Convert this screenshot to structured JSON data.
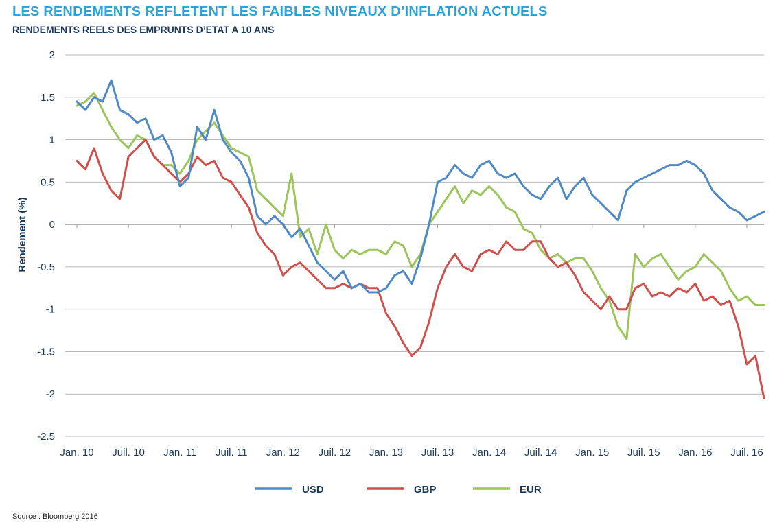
{
  "header": {
    "title": "LES RENDEMENTS REFLETENT LES FAIBLES NIVEAUX D’INFLATION ACTUELS",
    "subtitle": "RENDEMENTS REELS DES EMPRUNTS D’ETAT A 10 ANS"
  },
  "footer": {
    "source": "Source : Bloomberg 2016"
  },
  "chart_data": {
    "type": "line",
    "title": "LES RENDEMENTS REFLETENT LES FAIBLES NIVEAUX D’INFLATION ACTUELS",
    "subtitle": "RENDEMENTS REELS DES EMPRUNTS D’ETAT A 10 ANS",
    "xlabel": "",
    "ylabel": "Rendement (%)",
    "ylim": [
      -2.5,
      2
    ],
    "yticks": [
      2,
      1.5,
      1,
      0.5,
      0,
      -0.5,
      -1,
      -1.5,
      -2,
      -2.5
    ],
    "ytick_labels": [
      "2",
      "1.5",
      "1",
      "0.5",
      "0",
      "-0.5",
      "-1",
      "-1.5",
      "-2",
      "-2.5"
    ],
    "x_range": [
      "2010-01",
      "2016-09"
    ],
    "xticks": [
      "2010-01",
      "2010-07",
      "2011-01",
      "2011-07",
      "2012-01",
      "2012-07",
      "2013-01",
      "2013-07",
      "2014-01",
      "2014-07",
      "2015-01",
      "2015-07",
      "2016-01",
      "2016-07"
    ],
    "xtick_labels": [
      "Jan. 10",
      "Juil. 10",
      "Jan. 11",
      "Juil. 11",
      "Jan. 12",
      "Juil. 12",
      "Jan. 13",
      "Juil. 13",
      "Jan. 14",
      "Juil. 14",
      "Jan. 15",
      "Juil. 15",
      "Jan. 16",
      "Juil. 16"
    ],
    "grid": true,
    "legend": "bottom",
    "series": [
      {
        "name": "USD",
        "color": "#4f8ac6",
        "points": [
          [
            "2010-01",
            1.45
          ],
          [
            "2010-02",
            1.35
          ],
          [
            "2010-03",
            1.5
          ],
          [
            "2010-04",
            1.45
          ],
          [
            "2010-05",
            1.7
          ],
          [
            "2010-06",
            1.35
          ],
          [
            "2010-07",
            1.3
          ],
          [
            "2010-08",
            1.2
          ],
          [
            "2010-09",
            1.25
          ],
          [
            "2010-10",
            1.0
          ],
          [
            "2010-11",
            1.05
          ],
          [
            "2010-12",
            0.85
          ],
          [
            "2011-01",
            0.45
          ],
          [
            "2011-02",
            0.55
          ],
          [
            "2011-03",
            1.15
          ],
          [
            "2011-04",
            1.0
          ],
          [
            "2011-05",
            1.35
          ],
          [
            "2011-06",
            1.0
          ],
          [
            "2011-07",
            0.85
          ],
          [
            "2011-08",
            0.75
          ],
          [
            "2011-09",
            0.55
          ],
          [
            "2011-10",
            0.1
          ],
          [
            "2011-11",
            0.0
          ],
          [
            "2011-12",
            0.1
          ],
          [
            "2012-01",
            0.0
          ],
          [
            "2012-02",
            -0.15
          ],
          [
            "2012-03",
            -0.05
          ],
          [
            "2012-04",
            -0.25
          ],
          [
            "2012-05",
            -0.45
          ],
          [
            "2012-06",
            -0.55
          ],
          [
            "2012-07",
            -0.65
          ],
          [
            "2012-08",
            -0.55
          ],
          [
            "2012-09",
            -0.75
          ],
          [
            "2012-10",
            -0.7
          ],
          [
            "2012-11",
            -0.8
          ],
          [
            "2012-12",
            -0.8
          ],
          [
            "2013-01",
            -0.75
          ],
          [
            "2013-02",
            -0.6
          ],
          [
            "2013-03",
            -0.55
          ],
          [
            "2013-04",
            -0.7
          ],
          [
            "2013-05",
            -0.4
          ],
          [
            "2013-06",
            0.0
          ],
          [
            "2013-07",
            0.5
          ],
          [
            "2013-08",
            0.55
          ],
          [
            "2013-09",
            0.7
          ],
          [
            "2013-10",
            0.6
          ],
          [
            "2013-11",
            0.55
          ],
          [
            "2013-12",
            0.7
          ],
          [
            "2014-01",
            0.75
          ],
          [
            "2014-02",
            0.6
          ],
          [
            "2014-03",
            0.55
          ],
          [
            "2014-04",
            0.6
          ],
          [
            "2014-05",
            0.45
          ],
          [
            "2014-06",
            0.35
          ],
          [
            "2014-07",
            0.3
          ],
          [
            "2014-08",
            0.45
          ],
          [
            "2014-09",
            0.55
          ],
          [
            "2014-10",
            0.3
          ],
          [
            "2014-11",
            0.45
          ],
          [
            "2014-12",
            0.55
          ],
          [
            "2015-01",
            0.35
          ],
          [
            "2015-02",
            0.25
          ],
          [
            "2015-03",
            0.15
          ],
          [
            "2015-04",
            0.05
          ],
          [
            "2015-05",
            0.4
          ],
          [
            "2015-06",
            0.5
          ],
          [
            "2015-07",
            0.55
          ],
          [
            "2015-08",
            0.6
          ],
          [
            "2015-09",
            0.65
          ],
          [
            "2015-10",
            0.7
          ],
          [
            "2015-11",
            0.7
          ],
          [
            "2015-12",
            0.75
          ],
          [
            "2016-01",
            0.7
          ],
          [
            "2016-02",
            0.6
          ],
          [
            "2016-03",
            0.4
          ],
          [
            "2016-04",
            0.3
          ],
          [
            "2016-05",
            0.2
          ],
          [
            "2016-06",
            0.15
          ],
          [
            "2016-07",
            0.05
          ],
          [
            "2016-08",
            0.1
          ],
          [
            "2016-09",
            0.15
          ]
        ]
      },
      {
        "name": "GBP",
        "color": "#cf4f4c",
        "points": [
          [
            "2010-01",
            0.75
          ],
          [
            "2010-02",
            0.65
          ],
          [
            "2010-03",
            0.9
          ],
          [
            "2010-04",
            0.6
          ],
          [
            "2010-05",
            0.4
          ],
          [
            "2010-06",
            0.3
          ],
          [
            "2010-07",
            0.8
          ],
          [
            "2010-08",
            0.9
          ],
          [
            "2010-09",
            1.0
          ],
          [
            "2010-10",
            0.8
          ],
          [
            "2010-11",
            0.7
          ],
          [
            "2010-12",
            0.6
          ],
          [
            "2011-01",
            0.5
          ],
          [
            "2011-02",
            0.6
          ],
          [
            "2011-03",
            0.8
          ],
          [
            "2011-04",
            0.7
          ],
          [
            "2011-05",
            0.75
          ],
          [
            "2011-06",
            0.55
          ],
          [
            "2011-07",
            0.5
          ],
          [
            "2011-08",
            0.35
          ],
          [
            "2011-09",
            0.2
          ],
          [
            "2011-10",
            -0.1
          ],
          [
            "2011-11",
            -0.25
          ],
          [
            "2011-12",
            -0.35
          ],
          [
            "2012-01",
            -0.6
          ],
          [
            "2012-02",
            -0.5
          ],
          [
            "2012-03",
            -0.45
          ],
          [
            "2012-04",
            -0.55
          ],
          [
            "2012-05",
            -0.65
          ],
          [
            "2012-06",
            -0.75
          ],
          [
            "2012-07",
            -0.75
          ],
          [
            "2012-08",
            -0.7
          ],
          [
            "2012-09",
            -0.75
          ],
          [
            "2012-10",
            -0.7
          ],
          [
            "2012-11",
            -0.75
          ],
          [
            "2012-12",
            -0.75
          ],
          [
            "2013-01",
            -1.05
          ],
          [
            "2013-02",
            -1.2
          ],
          [
            "2013-03",
            -1.4
          ],
          [
            "2013-04",
            -1.55
          ],
          [
            "2013-05",
            -1.45
          ],
          [
            "2013-06",
            -1.15
          ],
          [
            "2013-07",
            -0.75
          ],
          [
            "2013-08",
            -0.5
          ],
          [
            "2013-09",
            -0.35
          ],
          [
            "2013-10",
            -0.5
          ],
          [
            "2013-11",
            -0.55
          ],
          [
            "2013-12",
            -0.35
          ],
          [
            "2014-01",
            -0.3
          ],
          [
            "2014-02",
            -0.35
          ],
          [
            "2014-03",
            -0.2
          ],
          [
            "2014-04",
            -0.3
          ],
          [
            "2014-05",
            -0.3
          ],
          [
            "2014-06",
            -0.2
          ],
          [
            "2014-07",
            -0.2
          ],
          [
            "2014-08",
            -0.4
          ],
          [
            "2014-09",
            -0.5
          ],
          [
            "2014-10",
            -0.45
          ],
          [
            "2014-11",
            -0.6
          ],
          [
            "2014-12",
            -0.8
          ],
          [
            "2015-01",
            -0.9
          ],
          [
            "2015-02",
            -1.0
          ],
          [
            "2015-03",
            -0.85
          ],
          [
            "2015-04",
            -1.0
          ],
          [
            "2015-05",
            -1.0
          ],
          [
            "2015-06",
            -0.75
          ],
          [
            "2015-07",
            -0.7
          ],
          [
            "2015-08",
            -0.85
          ],
          [
            "2015-09",
            -0.8
          ],
          [
            "2015-10",
            -0.85
          ],
          [
            "2015-11",
            -0.75
          ],
          [
            "2015-12",
            -0.8
          ],
          [
            "2016-01",
            -0.7
          ],
          [
            "2016-02",
            -0.9
          ],
          [
            "2016-03",
            -0.85
          ],
          [
            "2016-04",
            -0.95
          ],
          [
            "2016-05",
            -0.9
          ],
          [
            "2016-06",
            -1.2
          ],
          [
            "2016-07",
            -1.65
          ],
          [
            "2016-08",
            -1.55
          ],
          [
            "2016-09",
            -2.05
          ]
        ]
      },
      {
        "name": "EUR",
        "color": "#9bc45a",
        "points": [
          [
            "2010-01",
            1.4
          ],
          [
            "2010-02",
            1.45
          ],
          [
            "2010-03",
            1.55
          ],
          [
            "2010-04",
            1.35
          ],
          [
            "2010-05",
            1.15
          ],
          [
            "2010-06",
            1.0
          ],
          [
            "2010-07",
            0.9
          ],
          [
            "2010-08",
            1.05
          ],
          [
            "2010-09",
            1.0
          ],
          [
            "2010-10",
            0.8
          ],
          [
            "2010-11",
            0.7
          ],
          [
            "2010-12",
            0.7
          ],
          [
            "2011-01",
            0.6
          ],
          [
            "2011-02",
            0.75
          ],
          [
            "2011-03",
            1.0
          ],
          [
            "2011-04",
            1.1
          ],
          [
            "2011-05",
            1.2
          ],
          [
            "2011-06",
            1.05
          ],
          [
            "2011-07",
            0.9
          ],
          [
            "2011-08",
            0.85
          ],
          [
            "2011-09",
            0.8
          ],
          [
            "2011-10",
            0.4
          ],
          [
            "2011-11",
            0.3
          ],
          [
            "2011-12",
            0.2
          ],
          [
            "2012-01",
            0.1
          ],
          [
            "2012-02",
            0.6
          ],
          [
            "2012-03",
            -0.15
          ],
          [
            "2012-04",
            -0.05
          ],
          [
            "2012-05",
            -0.35
          ],
          [
            "2012-06",
            0.0
          ],
          [
            "2012-07",
            -0.3
          ],
          [
            "2012-08",
            -0.4
          ],
          [
            "2012-09",
            -0.3
          ],
          [
            "2012-10",
            -0.35
          ],
          [
            "2012-11",
            -0.3
          ],
          [
            "2012-12",
            -0.3
          ],
          [
            "2013-01",
            -0.35
          ],
          [
            "2013-02",
            -0.2
          ],
          [
            "2013-03",
            -0.25
          ],
          [
            "2013-04",
            -0.5
          ],
          [
            "2013-05",
            -0.35
          ],
          [
            "2013-06",
            0.0
          ],
          [
            "2013-07",
            0.15
          ],
          [
            "2013-08",
            0.3
          ],
          [
            "2013-09",
            0.45
          ],
          [
            "2013-10",
            0.25
          ],
          [
            "2013-11",
            0.4
          ],
          [
            "2013-12",
            0.35
          ],
          [
            "2014-01",
            0.45
          ],
          [
            "2014-02",
            0.35
          ],
          [
            "2014-03",
            0.2
          ],
          [
            "2014-04",
            0.15
          ],
          [
            "2014-05",
            -0.05
          ],
          [
            "2014-06",
            -0.1
          ],
          [
            "2014-07",
            -0.3
          ],
          [
            "2014-08",
            -0.4
          ],
          [
            "2014-09",
            -0.35
          ],
          [
            "2014-10",
            -0.45
          ],
          [
            "2014-11",
            -0.4
          ],
          [
            "2014-12",
            -0.4
          ],
          [
            "2015-01",
            -0.55
          ],
          [
            "2015-02",
            -0.75
          ],
          [
            "2015-03",
            -0.9
          ],
          [
            "2015-04",
            -1.2
          ],
          [
            "2015-05",
            -1.35
          ],
          [
            "2015-06",
            -0.35
          ],
          [
            "2015-07",
            -0.5
          ],
          [
            "2015-08",
            -0.4
          ],
          [
            "2015-09",
            -0.35
          ],
          [
            "2015-10",
            -0.5
          ],
          [
            "2015-11",
            -0.65
          ],
          [
            "2015-12",
            -0.55
          ],
          [
            "2016-01",
            -0.5
          ],
          [
            "2016-02",
            -0.35
          ],
          [
            "2016-03",
            -0.45
          ],
          [
            "2016-04",
            -0.55
          ],
          [
            "2016-05",
            -0.75
          ],
          [
            "2016-06",
            -0.9
          ],
          [
            "2016-07",
            -0.85
          ],
          [
            "2016-08",
            -0.95
          ],
          [
            "2016-09",
            -0.95
          ]
        ]
      }
    ]
  }
}
